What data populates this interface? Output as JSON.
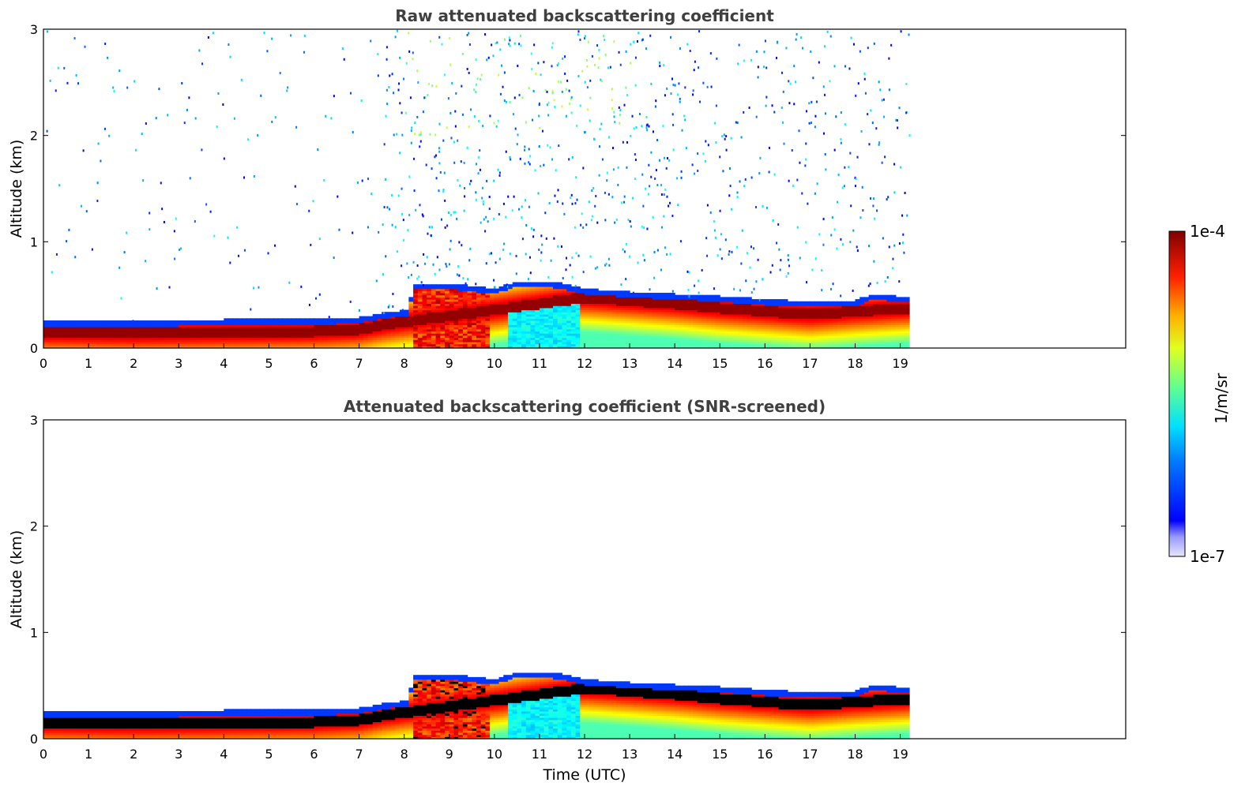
{
  "chart_data": [
    {
      "type": "heatmap",
      "title": "Raw attenuated backscattering coefficient",
      "xlabel": "",
      "ylabel": "Altitude (km)",
      "xlim": [
        0,
        24
      ],
      "ylim": [
        0,
        3
      ],
      "xticks": [
        0,
        1,
        2,
        3,
        4,
        5,
        6,
        7,
        8,
        9,
        10,
        11,
        12,
        13,
        14,
        15,
        16,
        17,
        18,
        19
      ],
      "yticks": [
        0,
        1,
        2,
        3
      ],
      "data_extent_hours": [
        0,
        19.2
      ],
      "grid": false,
      "layers": [
        {
          "name": "aerosol boundary layer top (km)",
          "x": [
            0,
            2,
            4,
            6,
            7,
            7.5,
            8.1,
            8.2,
            9,
            10,
            10.5,
            11,
            11.5,
            12,
            13,
            14,
            15,
            16,
            17,
            18,
            18.4,
            19.2
          ],
          "values": [
            0.25,
            0.24,
            0.26,
            0.26,
            0.28,
            0.32,
            0.35,
            0.6,
            0.6,
            0.55,
            0.62,
            0.62,
            0.6,
            0.55,
            0.52,
            0.5,
            0.48,
            0.45,
            0.43,
            0.44,
            0.5,
            0.47
          ]
        },
        {
          "name": "peak backscatter layer (km)",
          "x": [
            0,
            2,
            4,
            6,
            7,
            7.5,
            8,
            12,
            13,
            14,
            15,
            16,
            17,
            18,
            19.2
          ],
          "values": [
            0.15,
            0.14,
            0.15,
            0.16,
            0.18,
            0.22,
            0.25,
            0.48,
            0.45,
            0.42,
            0.38,
            0.35,
            0.32,
            0.35,
            0.38
          ]
        }
      ],
      "noise_above_layer": true
    },
    {
      "type": "heatmap",
      "title": "Attenuated backscattering coefficient (SNR-screened)",
      "xlabel": "Time (UTC)",
      "ylabel": "Altitude (km)",
      "xlim": [
        0,
        24
      ],
      "ylim": [
        0,
        3
      ],
      "xticks": [
        0,
        1,
        2,
        3,
        4,
        5,
        6,
        7,
        8,
        9,
        10,
        11,
        12,
        13,
        14,
        15,
        16,
        17,
        18,
        19
      ],
      "yticks": [
        0,
        1,
        2,
        3
      ],
      "data_extent_hours": [
        0,
        19.2
      ],
      "grid": false,
      "layers": [
        {
          "name": "aerosol boundary layer top (km)",
          "x": [
            0,
            2,
            4,
            6,
            7,
            7.5,
            8.1,
            8.2,
            9,
            10,
            10.5,
            11,
            11.5,
            12,
            13,
            14,
            15,
            16,
            17,
            18,
            18.4,
            19.2
          ],
          "values": [
            0.25,
            0.24,
            0.26,
            0.26,
            0.28,
            0.32,
            0.35,
            0.6,
            0.6,
            0.55,
            0.62,
            0.62,
            0.6,
            0.55,
            0.52,
            0.5,
            0.48,
            0.45,
            0.43,
            0.44,
            0.5,
            0.47
          ]
        },
        {
          "name": "peak backscatter layer (km)",
          "x": [
            0,
            2,
            4,
            6,
            7,
            7.5,
            8,
            12,
            13,
            14,
            15,
            16,
            17,
            18,
            19.2
          ],
          "values": [
            0.15,
            0.14,
            0.15,
            0.16,
            0.18,
            0.22,
            0.25,
            0.48,
            0.45,
            0.42,
            0.38,
            0.35,
            0.32,
            0.35,
            0.38
          ]
        }
      ],
      "noise_above_layer": false,
      "saturated_color": "#000000"
    }
  ],
  "colorbar": {
    "label": "1/m/sr",
    "max_label": "1e-4",
    "min_label": "1e-7",
    "scale": "log",
    "range": [
      1e-07,
      0.0001
    ],
    "colormap": "jet"
  }
}
